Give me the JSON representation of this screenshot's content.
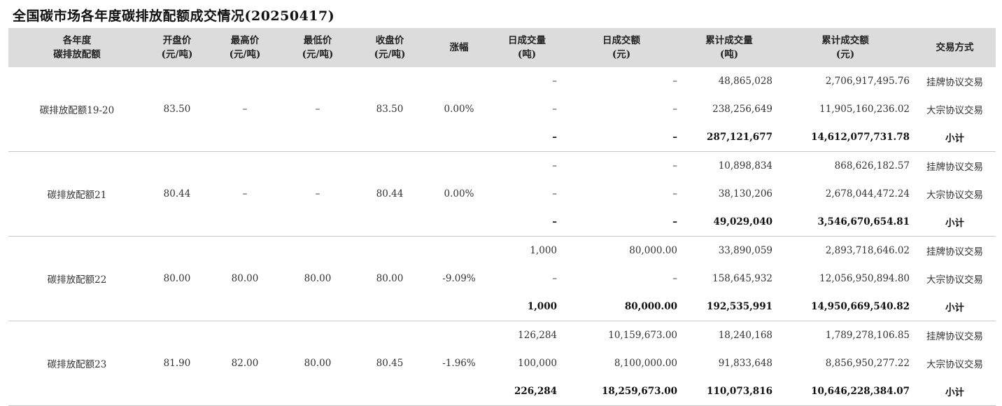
{
  "title": "全国碳市场各年度碳排放配额成交情况(20250417)",
  "headers": [
    [
      "各年度",
      "碳排放配额"
    ],
    [
      "开盘价",
      "(元/吨)"
    ],
    [
      "最高价",
      "(元/吨)"
    ],
    [
      "最低价",
      "(元/吨)"
    ],
    [
      "收盘价",
      "(元/吨)"
    ],
    [
      "涨幅"
    ],
    [
      "日成交量",
      "(吨)"
    ],
    [
      "日成交额",
      "(元)"
    ],
    [
      "累计成交量",
      "(吨)"
    ],
    [
      "累计成交额",
      "(元)"
    ],
    [
      "交易方式"
    ]
  ],
  "groups": [
    {
      "name": "碳排放配额19-20",
      "open": "83.50",
      "high": "–",
      "low": "–",
      "close": "83.50",
      "change": "0.00%",
      "rows": [
        {
          "daily_volume": "–",
          "daily_amount": "–",
          "cum_volume": "48,865,028",
          "cum_amount": "2,706,917,495.76",
          "method": "挂牌协议交易"
        },
        {
          "daily_volume": "–",
          "daily_amount": "–",
          "cum_volume": "238,256,649",
          "cum_amount": "11,905,160,236.02",
          "method": "大宗协议交易"
        },
        {
          "daily_volume": "–",
          "daily_amount": "–",
          "cum_volume": "287,121,677",
          "cum_amount": "14,612,077,731.78",
          "method": "小计"
        }
      ]
    },
    {
      "name": "碳排放配额21",
      "open": "80.44",
      "high": "–",
      "low": "–",
      "close": "80.44",
      "change": "0.00%",
      "rows": [
        {
          "daily_volume": "–",
          "daily_amount": "–",
          "cum_volume": "10,898,834",
          "cum_amount": "868,626,182.57",
          "method": "挂牌协议交易"
        },
        {
          "daily_volume": "–",
          "daily_amount": "–",
          "cum_volume": "38,130,206",
          "cum_amount": "2,678,044,472.24",
          "method": "大宗协议交易"
        },
        {
          "daily_volume": "–",
          "daily_amount": "–",
          "cum_volume": "49,029,040",
          "cum_amount": "3,546,670,654.81",
          "method": "小计"
        }
      ]
    },
    {
      "name": "碳排放配额22",
      "open": "80.00",
      "high": "80.00",
      "low": "80.00",
      "close": "80.00",
      "change": "-9.09%",
      "rows": [
        {
          "daily_volume": "1,000",
          "daily_amount": "80,000.00",
          "cum_volume": "33,890,059",
          "cum_amount": "2,893,718,646.02",
          "method": "挂牌协议交易"
        },
        {
          "daily_volume": "–",
          "daily_amount": "–",
          "cum_volume": "158,645,932",
          "cum_amount": "12,056,950,894.80",
          "method": "大宗协议交易"
        },
        {
          "daily_volume": "1,000",
          "daily_amount": "80,000.00",
          "cum_volume": "192,535,991",
          "cum_amount": "14,950,669,540.82",
          "method": "小计"
        }
      ]
    },
    {
      "name": "碳排放配额23",
      "open": "81.90",
      "high": "82.00",
      "low": "80.00",
      "close": "80.45",
      "change": "-1.96%",
      "rows": [
        {
          "daily_volume": "126,284",
          "daily_amount": "10,159,673.00",
          "cum_volume": "18,240,168",
          "cum_amount": "1,789,278,106.85",
          "method": "挂牌协议交易"
        },
        {
          "daily_volume": "100,000",
          "daily_amount": "8,100,000.00",
          "cum_volume": "91,833,648",
          "cum_amount": "8,856,950,277.22",
          "method": "大宗协议交易"
        },
        {
          "daily_volume": "226,284",
          "daily_amount": "18,259,673.00",
          "cum_volume": "110,073,816",
          "cum_amount": "10,646,228,384.07",
          "method": "小计"
        }
      ]
    }
  ]
}
